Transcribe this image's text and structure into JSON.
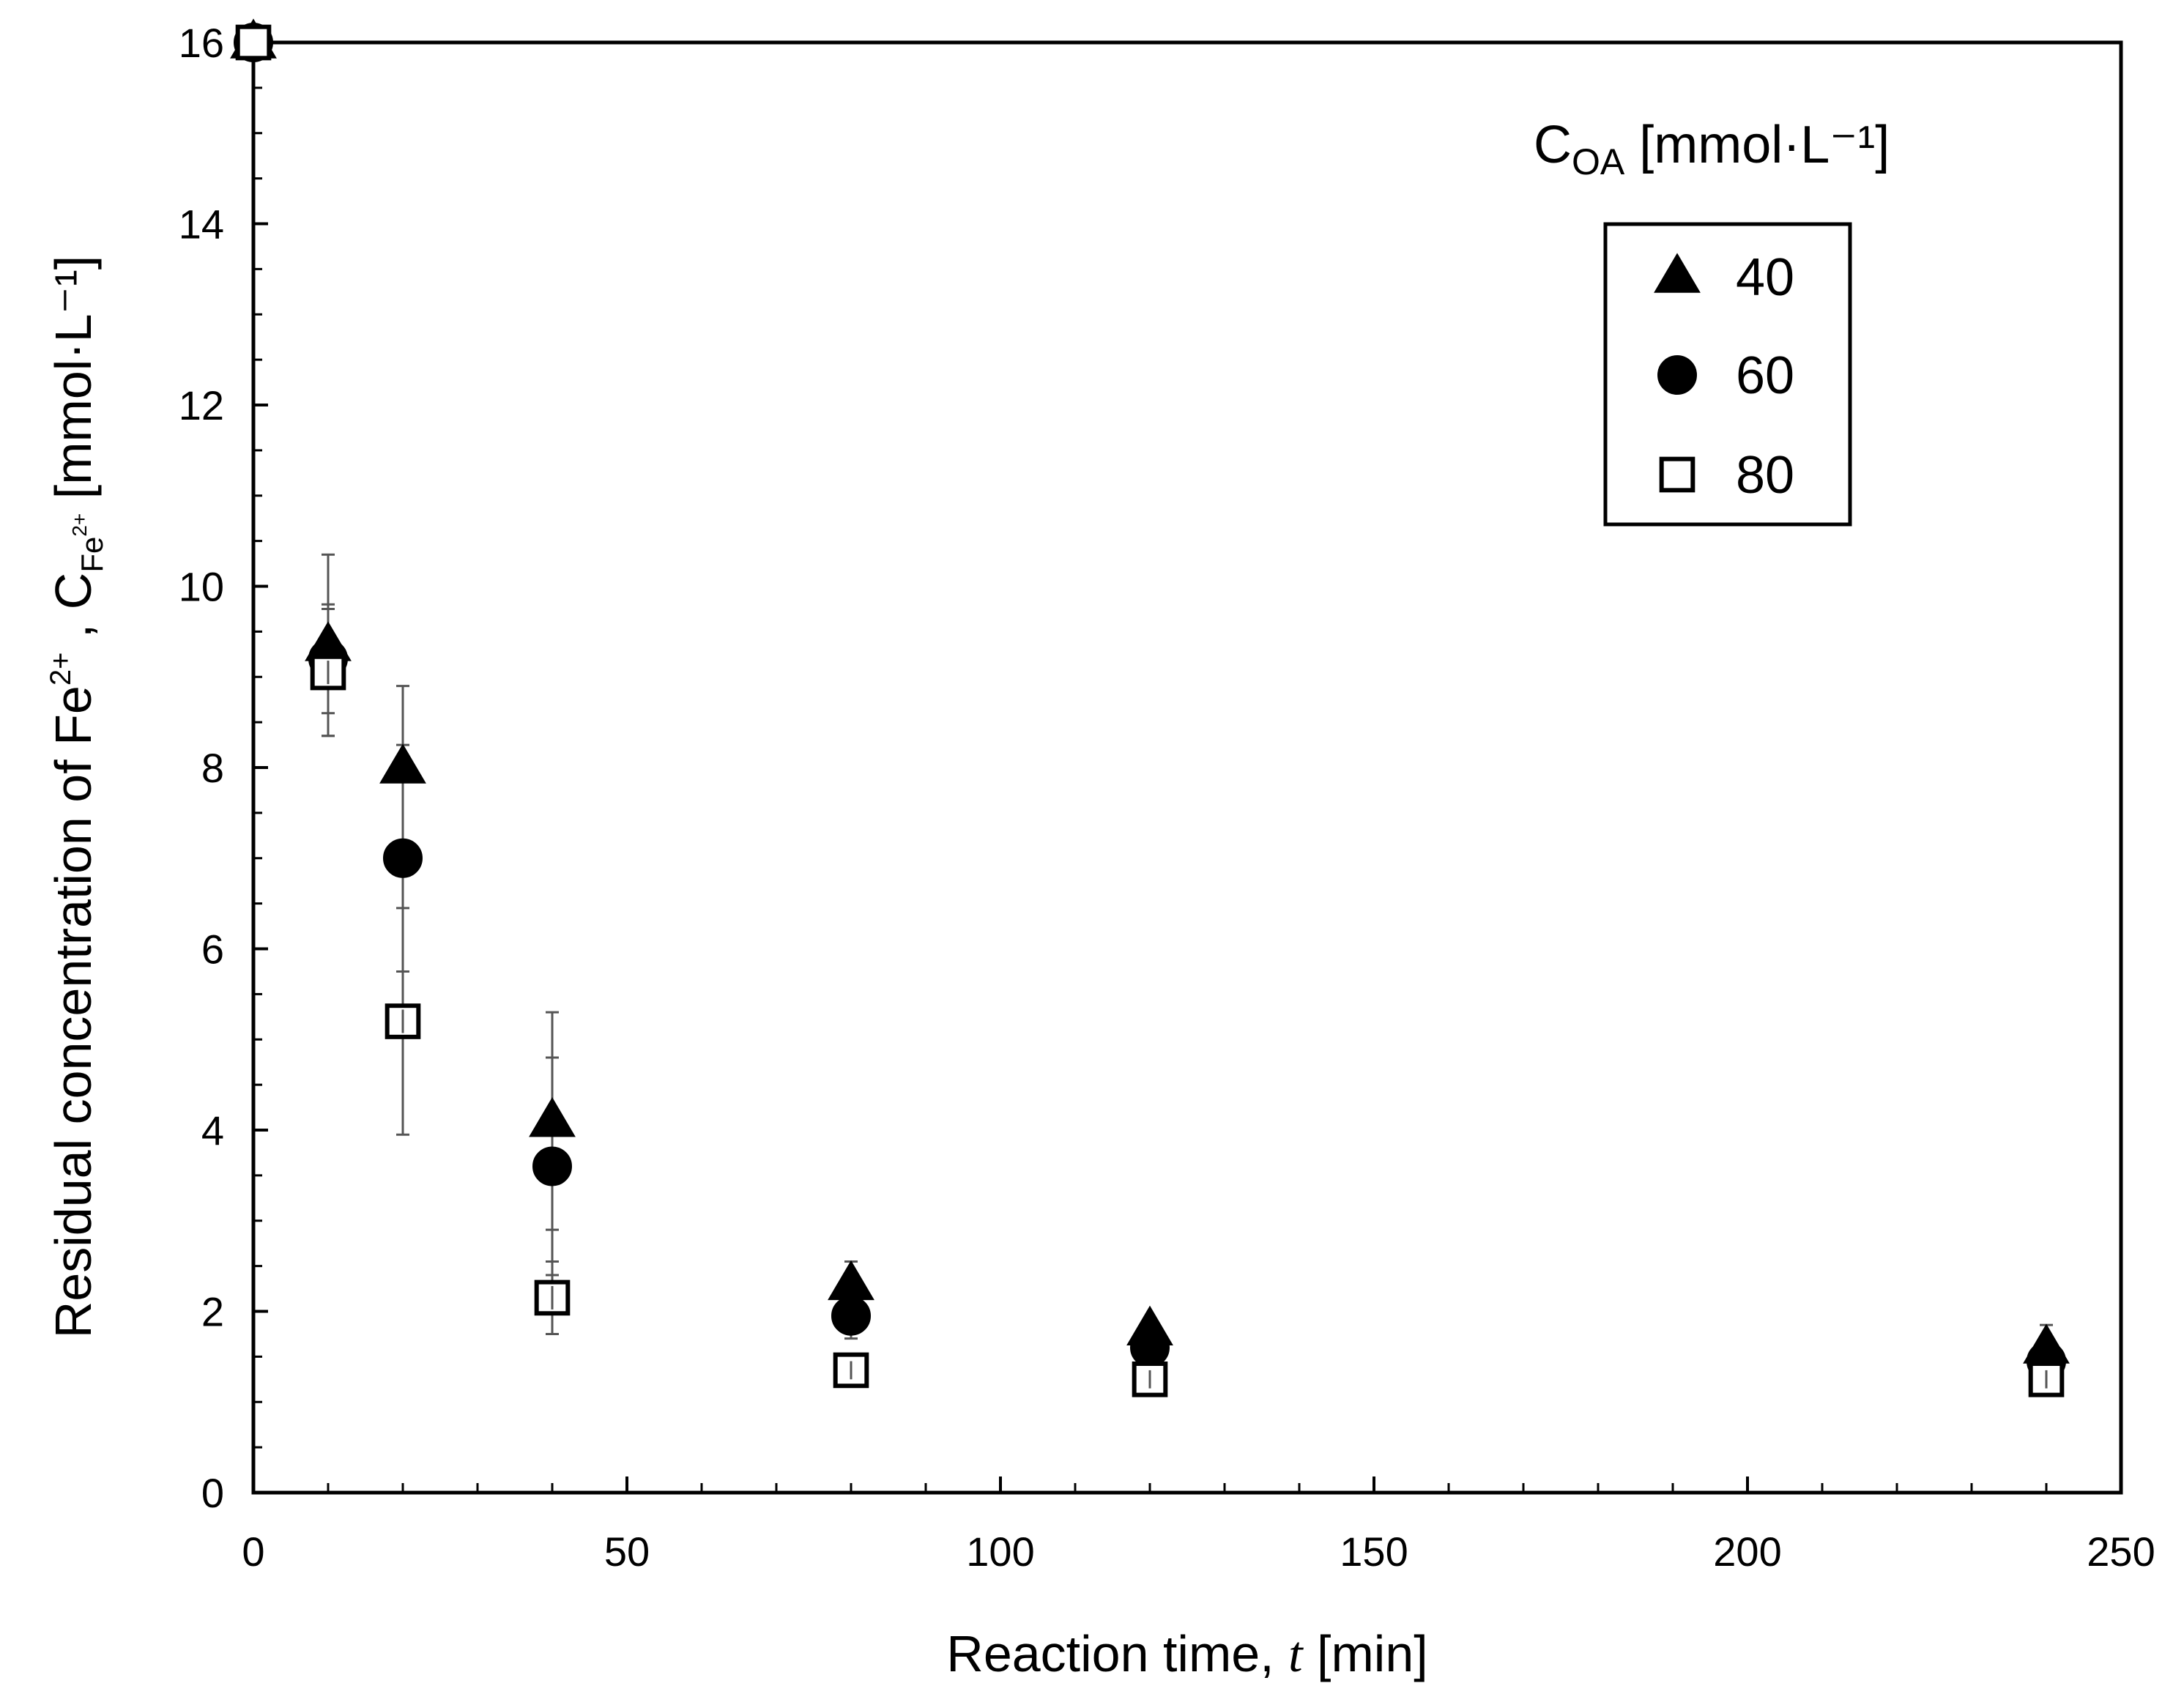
{
  "chart_data": {
    "type": "scatter",
    "title": "",
    "xlabel": {
      "prefix": "Reaction  time, ",
      "variable": "t",
      "suffix": " [min]"
    },
    "ylabel": {
      "prefix": "Residual  concentration  of  Fe",
      "ion_charge": "2+",
      "separator": " ,  C",
      "subscript": "Fe",
      "subscript_charge": "2+",
      "suffix": "  [mmol·L⁻¹]"
    },
    "xlim": [
      0,
      250
    ],
    "ylim": [
      0,
      16
    ],
    "x_ticks": [
      0,
      50,
      100,
      150,
      200,
      250
    ],
    "y_ticks": [
      0,
      2,
      4,
      6,
      8,
      10,
      12,
      14,
      16
    ],
    "x_minor_step": 10,
    "y_minor_step": 0.5,
    "grid": false,
    "legend": {
      "title_main": "C",
      "title_sub": "OA",
      "title_unit": " [mmol·L⁻¹]",
      "position": "top-right"
    },
    "series": [
      {
        "name": "40",
        "marker": "triangle",
        "fill": "#000000",
        "points": [
          {
            "x": 0,
            "y": 16.0,
            "err": 0
          },
          {
            "x": 10,
            "y": 9.35,
            "err": 1.0
          },
          {
            "x": 20,
            "y": 8.0,
            "err": 0.9
          },
          {
            "x": 40,
            "y": 4.1,
            "err": 1.2
          },
          {
            "x": 80,
            "y": 2.3,
            "err": 0.25
          },
          {
            "x": 120,
            "y": 1.8,
            "err": 0.1
          },
          {
            "x": 240,
            "y": 1.6,
            "err": 0.25
          }
        ]
      },
      {
        "name": "60",
        "marker": "circle",
        "fill": "#000000",
        "points": [
          {
            "x": 0,
            "y": 16.0,
            "err": 0
          },
          {
            "x": 10,
            "y": 9.2,
            "err": 0.6
          },
          {
            "x": 20,
            "y": 7.0,
            "err": 1.25
          },
          {
            "x": 40,
            "y": 3.6,
            "err": 1.2
          },
          {
            "x": 80,
            "y": 1.95,
            "err": 0.25
          },
          {
            "x": 120,
            "y": 1.6,
            "err": 0.15
          },
          {
            "x": 240,
            "y": 1.45,
            "err": 0.15
          }
        ]
      },
      {
        "name": "80",
        "marker": "square-open",
        "fill": "#ffffff",
        "points": [
          {
            "x": 0,
            "y": 16.0,
            "err": 0
          },
          {
            "x": 10,
            "y": 9.05,
            "err": 0.7
          },
          {
            "x": 20,
            "y": 5.2,
            "err": 1.25
          },
          {
            "x": 40,
            "y": 2.15,
            "err": 0.4
          },
          {
            "x": 80,
            "y": 1.35,
            "err": 0.1
          },
          {
            "x": 120,
            "y": 1.25,
            "err": 0.1
          },
          {
            "x": 240,
            "y": 1.25,
            "err": 0.1
          }
        ]
      }
    ],
    "error_bar_color": "#555555"
  }
}
